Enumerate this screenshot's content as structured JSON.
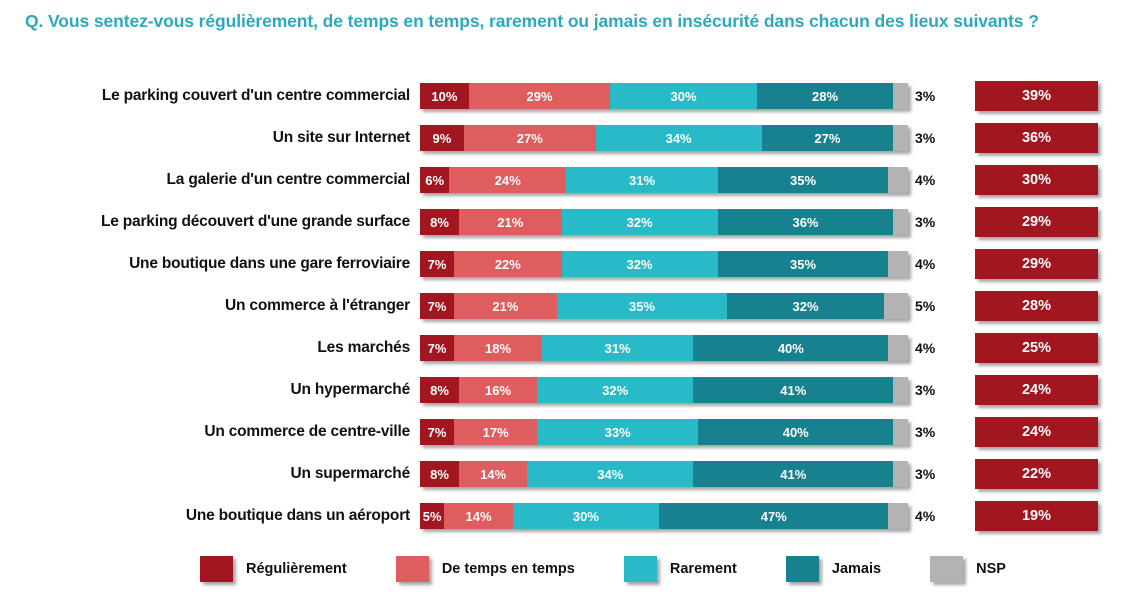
{
  "chart_data": {
    "type": "bar",
    "stacked": true,
    "orientation": "horizontal",
    "title": "Q. Vous sentez-vous régulièrement, de temps en temps, rarement ou jamais en insécurité dans chacun des lieux suivants ?",
    "title_color": "#2CA9BD",
    "value_suffix": "%",
    "xlim": [
      0,
      100
    ],
    "grid": false,
    "legend_position": "bottom",
    "categories": [
      "Le parking couvert d'un centre commercial",
      "Un site sur Internet",
      "La galerie d'un centre commercial",
      "Le parking découvert d'une grande surface",
      "Une boutique dans une gare ferroviaire",
      "Un commerce à l'étranger",
      "Les marchés",
      "Un hypermarché",
      "Un commerce de centre-ville",
      "Un supermarché",
      "Une boutique dans un aéroport"
    ],
    "series": [
      {
        "name": "Régulièrement",
        "color": "#A1161F",
        "values": [
          10,
          9,
          6,
          8,
          7,
          7,
          7,
          8,
          7,
          8,
          5
        ]
      },
      {
        "name": "De temps en temps",
        "color": "#E05D5F",
        "values": [
          29,
          27,
          24,
          21,
          22,
          21,
          18,
          16,
          17,
          14,
          14
        ]
      },
      {
        "name": "Rarement",
        "color": "#29BAC8",
        "values": [
          30,
          34,
          31,
          32,
          32,
          35,
          31,
          32,
          33,
          34,
          30
        ]
      },
      {
        "name": "Jamais",
        "color": "#18818F",
        "values": [
          28,
          27,
          35,
          36,
          35,
          32,
          40,
          41,
          40,
          41,
          47
        ]
      },
      {
        "name": "NSP",
        "color": "#B3B3B3",
        "values": [
          3,
          3,
          4,
          3,
          4,
          5,
          4,
          3,
          3,
          3,
          4
        ]
      }
    ],
    "totals": {
      "color": "#A1161F",
      "values": [
        39,
        36,
        30,
        29,
        29,
        28,
        25,
        24,
        24,
        22,
        19
      ]
    }
  }
}
